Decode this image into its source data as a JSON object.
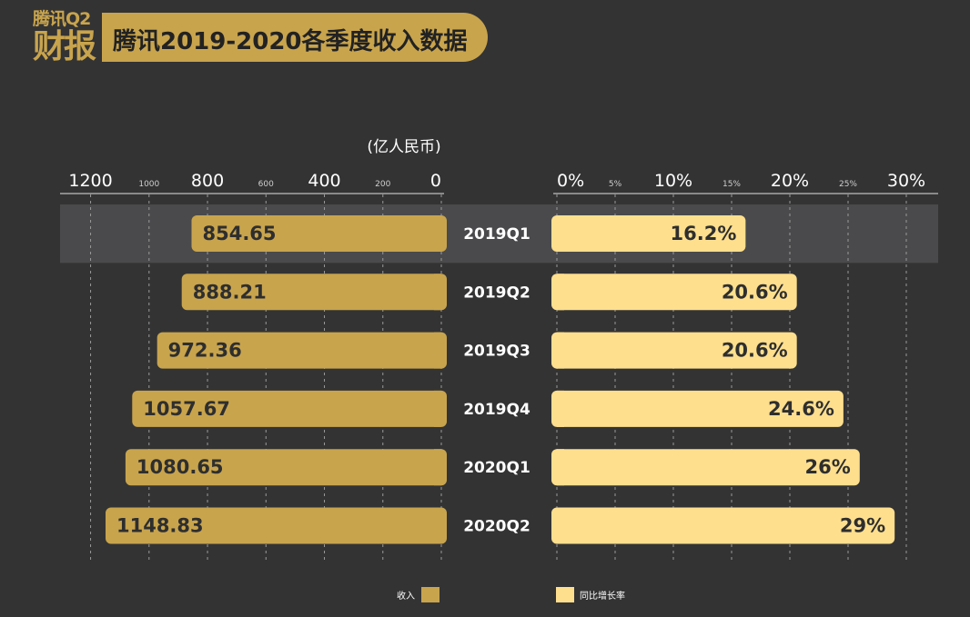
{
  "header": {
    "logo_line1": "腾讯Q2",
    "logo_line2": "财报",
    "title": "腾讯2019-2020各季度收入数据"
  },
  "colors": {
    "background": "#333334",
    "revenue_bar": "#c8a44d",
    "growth_bar": "#fedf8e",
    "highlight_band": "#4a4a4c"
  },
  "chart_data": {
    "type": "bar",
    "orientation": "horizontal",
    "unit": "(亿人民币)",
    "categories": [
      "2019Q1",
      "2019Q2",
      "2019Q3",
      "2019Q4",
      "2020Q1",
      "2020Q2"
    ],
    "highlighted_category": "2019Q1",
    "series": [
      {
        "name": "收入",
        "values": [
          854.65,
          888.21,
          972.36,
          1057.67,
          1080.65,
          1148.83
        ],
        "labels": [
          "854.65",
          "888.21",
          "972.36",
          "1057.67",
          "1080.65",
          "1148.83"
        ],
        "axis": {
          "min": 0,
          "max": 1200,
          "reversed": true,
          "major_ticks": [
            "1200",
            "800",
            "400",
            "0"
          ],
          "minor_ticks": [
            "1000",
            "600",
            "200"
          ]
        }
      },
      {
        "name": "同比增长率",
        "values": [
          16.2,
          20.6,
          20.6,
          24.6,
          26,
          29
        ],
        "labels": [
          "16.2%",
          "20.6%",
          "20.6%",
          "24.6%",
          "26%",
          "29%"
        ],
        "axis": {
          "min": 0,
          "max": 30,
          "major_ticks": [
            "0%",
            "10%",
            "20%",
            "30%"
          ],
          "minor_ticks": [
            "5%",
            "15%",
            "25%"
          ]
        }
      }
    ],
    "legend": [
      {
        "label": "收入",
        "color": "#c8a44d"
      },
      {
        "label": "同比增长率",
        "color": "#fedf8e"
      }
    ],
    "legend_position": "bottom",
    "grid": true
  }
}
